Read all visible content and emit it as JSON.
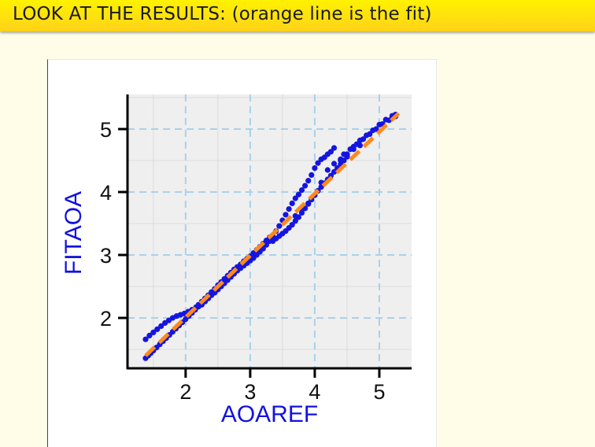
{
  "slide": {
    "title": "LOOK AT THE RESULTS: (orange line is the fit)"
  },
  "colors": {
    "header_top": "#fff200",
    "header_bottom": "#ffd21a",
    "slide_bg": "#fffde7",
    "points": "#1515e0",
    "fit_line": "#ff8a1c",
    "grid": "#a8d2ea",
    "panel": "#efefef",
    "label": "#1212e0"
  },
  "chart_data": {
    "type": "scatter",
    "xlabel": "AOAREF",
    "ylabel": "FITAOA",
    "xlim": [
      1.1,
      5.5
    ],
    "ylim": [
      1.2,
      5.55
    ],
    "xticks": [
      2,
      3,
      4,
      5
    ],
    "yticks": [
      2,
      3,
      4,
      5
    ],
    "grid": true,
    "series": [
      {
        "kind": "points",
        "x": [
          1.38,
          1.42,
          1.46,
          1.5,
          1.55,
          1.6,
          1.65,
          1.7,
          1.75,
          1.8,
          1.85,
          1.9,
          1.95,
          2.0,
          2.05,
          2.1,
          2.15,
          2.2,
          1.38,
          1.44,
          1.5,
          1.56,
          1.62,
          1.68,
          1.74,
          1.8,
          1.86,
          1.92,
          1.98,
          2.04,
          2.1,
          2.16,
          2.2,
          2.25,
          2.3,
          2.35,
          2.4,
          2.45,
          2.5,
          2.55,
          2.6,
          2.65,
          2.7,
          2.75,
          2.8,
          2.85,
          2.9,
          2.95,
          3.0,
          3.05,
          3.1,
          3.15,
          3.2,
          3.25,
          3.3,
          2.25,
          2.3,
          2.35,
          2.4,
          2.45,
          2.5,
          2.55,
          2.6,
          2.65,
          2.7,
          2.75,
          2.8,
          2.85,
          2.9,
          2.95,
          3.0,
          3.05,
          3.1,
          3.15,
          3.2,
          3.25,
          3.3,
          3.35,
          3.4,
          3.45,
          3.5,
          3.55,
          3.6,
          3.65,
          3.7,
          3.75,
          3.8,
          3.85,
          3.9,
          3.95,
          4.0,
          4.05,
          4.1,
          4.15,
          4.2,
          4.25,
          4.3,
          3.35,
          3.4,
          3.45,
          3.5,
          3.55,
          3.6,
          3.65,
          3.7,
          3.75,
          3.8,
          3.85,
          3.9,
          3.95,
          4.0,
          4.05,
          4.1,
          4.15,
          4.2,
          4.25,
          4.3,
          4.35,
          4.4,
          4.45,
          4.5,
          3.7,
          3.8,
          3.9,
          4.0,
          4.1,
          4.2,
          4.3,
          4.4,
          4.5,
          4.6,
          4.7,
          4.4,
          4.5,
          4.6,
          4.7,
          4.8,
          4.9,
          5.0,
          5.1,
          5.2,
          5.25,
          4.45,
          4.55,
          4.65,
          4.75,
          4.85,
          4.95,
          5.05,
          5.15,
          5.2,
          5.25
        ],
        "y": [
          1.36,
          1.4,
          1.44,
          1.48,
          1.53,
          1.58,
          1.63,
          1.68,
          1.73,
          1.78,
          1.83,
          1.88,
          1.93,
          1.98,
          2.03,
          2.08,
          2.13,
          2.18,
          1.66,
          1.72,
          1.77,
          1.82,
          1.87,
          1.92,
          1.96,
          2.0,
          2.03,
          2.05,
          2.07,
          2.1,
          2.13,
          2.17,
          2.21,
          2.26,
          2.31,
          2.36,
          2.41,
          2.46,
          2.52,
          2.57,
          2.62,
          2.67,
          2.72,
          2.77,
          2.81,
          2.85,
          2.9,
          2.94,
          2.98,
          3.03,
          3.08,
          3.13,
          3.18,
          3.23,
          3.28,
          2.21,
          2.26,
          2.31,
          2.36,
          2.4,
          2.45,
          2.5,
          2.55,
          2.6,
          2.65,
          2.7,
          2.75,
          2.79,
          2.83,
          2.87,
          2.91,
          2.95,
          3.0,
          3.05,
          3.1,
          3.16,
          3.22,
          3.3,
          3.38,
          3.46,
          3.55,
          3.64,
          3.73,
          3.82,
          3.9,
          3.96,
          4.03,
          4.1,
          4.18,
          4.27,
          4.38,
          4.46,
          4.52,
          4.55,
          4.6,
          4.64,
          4.7,
          3.22,
          3.26,
          3.3,
          3.34,
          3.38,
          3.43,
          3.48,
          3.54,
          3.6,
          3.67,
          3.74,
          3.81,
          3.88,
          3.95,
          4.02,
          4.08,
          4.14,
          4.2,
          4.26,
          4.32,
          4.38,
          4.44,
          4.5,
          4.56,
          3.62,
          3.72,
          3.82,
          3.95,
          4.15,
          4.35,
          4.45,
          4.52,
          4.6,
          4.68,
          4.74,
          4.5,
          4.6,
          4.72,
          4.82,
          4.9,
          4.98,
          5.07,
          5.15,
          5.21,
          5.23,
          4.6,
          4.68,
          4.76,
          4.84,
          4.92,
          5.0,
          5.08,
          5.14,
          5.18,
          5.2
        ]
      },
      {
        "kind": "fit-line",
        "x": [
          1.38,
          5.3
        ],
        "y": [
          1.4,
          5.25
        ]
      }
    ]
  }
}
